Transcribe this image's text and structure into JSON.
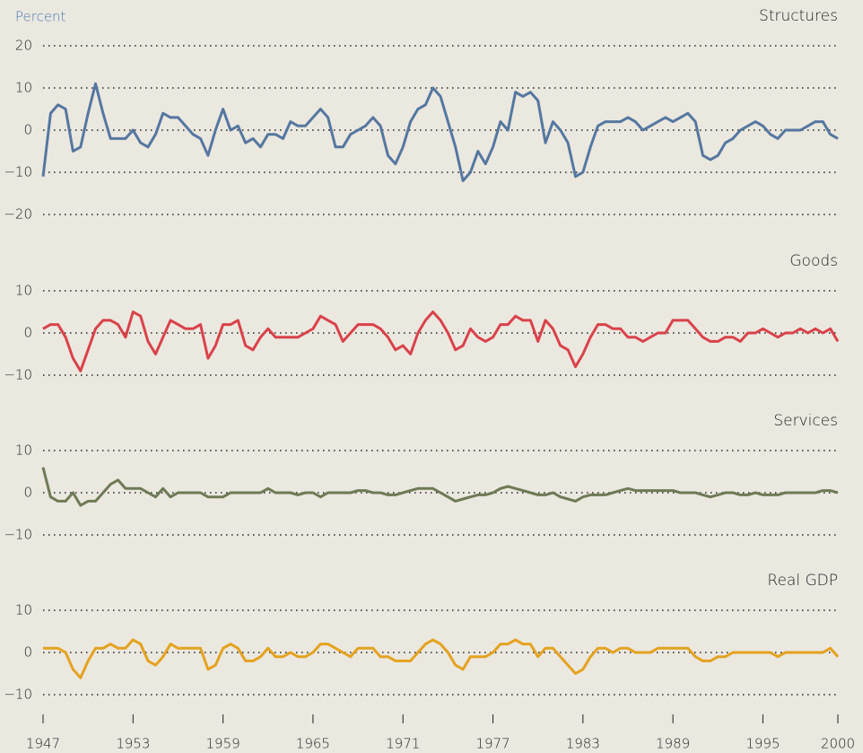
{
  "chart_data": {
    "type": "line",
    "ylabel": "Percent",
    "xlim": [
      1947,
      2000
    ],
    "xticks": [
      1947,
      1953,
      1959,
      1965,
      1971,
      1977,
      1983,
      1989,
      1995,
      2000
    ],
    "x": [
      1947,
      1947.5,
      1948,
      1948.5,
      1949,
      1949.5,
      1950,
      1950.5,
      1951,
      1951.5,
      1952,
      1952.5,
      1953,
      1953.5,
      1954,
      1954.5,
      1955,
      1955.5,
      1956,
      1956.5,
      1957,
      1957.5,
      1958,
      1958.5,
      1959,
      1959.5,
      1960,
      1960.5,
      1961,
      1961.5,
      1962,
      1962.5,
      1963,
      1963.5,
      1964,
      1964.5,
      1965,
      1965.5,
      1966,
      1966.5,
      1967,
      1967.5,
      1968,
      1968.5,
      1969,
      1969.5,
      1970,
      1970.5,
      1971,
      1971.5,
      1972,
      1972.5,
      1973,
      1973.5,
      1974,
      1974.5,
      1975,
      1975.5,
      1976,
      1976.5,
      1977,
      1977.5,
      1978,
      1978.5,
      1979,
      1979.5,
      1980,
      1980.5,
      1981,
      1981.5,
      1982,
      1982.5,
      1983,
      1983.5,
      1984,
      1984.5,
      1985,
      1985.5,
      1986,
      1986.5,
      1987,
      1987.5,
      1988,
      1988.5,
      1989,
      1989.5,
      1990,
      1990.5,
      1991,
      1991.5,
      1992,
      1992.5,
      1993,
      1993.5,
      1994,
      1994.5,
      1995,
      1995.5,
      1996,
      1996.5,
      1997,
      1997.5,
      1998,
      1998.5,
      1999,
      1999.5,
      2000
    ],
    "series": [
      {
        "name": "Structures",
        "color": "#5577a0",
        "ylim": [
          -20,
          20
        ],
        "yticks": [
          {
            "value": -20,
            "label": "−20"
          },
          {
            "value": -10,
            "label": "−10"
          },
          0,
          10,
          20
        ],
        "values": [
          -11,
          4,
          6,
          5,
          -5,
          -4,
          4,
          11,
          4,
          -2,
          -2,
          -2,
          0,
          -3,
          -4,
          -1,
          4,
          3,
          3,
          1,
          -1,
          -2,
          -6,
          0,
          5,
          0,
          1,
          -3,
          -2,
          -4,
          -1,
          -1,
          -2,
          2,
          1,
          1,
          3,
          5,
          3,
          -4,
          -4,
          -1,
          0,
          1,
          3,
          1,
          -6,
          -8,
          -4,
          2,
          5,
          6,
          10,
          8,
          2,
          -4,
          -12,
          -10,
          -5,
          -8,
          -4,
          2,
          0,
          9,
          8,
          9,
          7,
          -3,
          2,
          0,
          -3,
          -11,
          -10,
          -4,
          1,
          2,
          2,
          2,
          3,
          2,
          0,
          1,
          2,
          3,
          2,
          3,
          4,
          2,
          -6,
          -7,
          -6,
          -3,
          -2,
          0,
          1,
          2,
          1,
          -1,
          -2,
          0,
          0,
          0,
          1,
          2,
          2,
          -1,
          -2
        ]
      },
      {
        "name": "Goods",
        "color": "#d9424a",
        "ylim": [
          -10,
          10
        ],
        "yticks": [
          {
            "value": -10,
            "label": "−10"
          },
          0,
          10
        ],
        "values": [
          1,
          2,
          2,
          -1,
          -6,
          -9,
          -4,
          1,
          3,
          3,
          2,
          -1,
          5,
          4,
          -2,
          -5,
          -1,
          3,
          2,
          1,
          1,
          2,
          -6,
          -3,
          2,
          2,
          3,
          -3,
          -4,
          -1,
          1,
          -1,
          -1,
          -1,
          -1,
          0,
          1,
          4,
          3,
          2,
          -2,
          0,
          2,
          2,
          2,
          1,
          -1,
          -4,
          -3,
          -5,
          0,
          3,
          5,
          3,
          0,
          -4,
          -3,
          1,
          -1,
          -2,
          -1,
          2,
          2,
          4,
          3,
          3,
          -2,
          3,
          1,
          -3,
          -4,
          -8,
          -5,
          -1,
          2,
          2,
          1,
          1,
          -1,
          -1,
          -2,
          -1,
          0,
          0,
          3,
          3,
          3,
          1,
          -1,
          -2,
          -2,
          -1,
          -1,
          -2,
          0,
          0,
          1,
          0,
          -1,
          0,
          0,
          1,
          0,
          1,
          0,
          1,
          -2
        ]
      },
      {
        "name": "Services",
        "color": "#6e7a55",
        "ylim": [
          -10,
          10
        ],
        "yticks": [
          {
            "value": -10,
            "label": "−10"
          },
          0,
          10
        ],
        "values": [
          6,
          -1,
          -2,
          -2,
          0,
          -3,
          -2,
          -2,
          0,
          2,
          3,
          1,
          1,
          1,
          0,
          -1,
          1,
          -1,
          0,
          0,
          0,
          0,
          -1,
          -1,
          -1,
          0,
          0,
          0,
          0,
          0,
          1,
          0,
          0,
          0,
          -0.5,
          0,
          0,
          -1,
          0,
          0,
          0,
          0,
          0.5,
          0.5,
          0,
          0,
          -0.5,
          -0.5,
          0,
          0.5,
          1,
          1,
          1,
          0,
          -1,
          -2,
          -1.5,
          -1,
          -0.5,
          -0.5,
          0,
          1,
          1.5,
          1,
          0.5,
          0,
          -0.5,
          -0.5,
          0,
          -1,
          -1.5,
          -2,
          -1,
          -0.5,
          -0.5,
          -0.5,
          0,
          0.5,
          1,
          0.5,
          0.5,
          0.5,
          0.5,
          0.5,
          0.5,
          0,
          0,
          0,
          -0.5,
          -1,
          -0.5,
          0,
          0,
          -0.5,
          -0.5,
          0,
          -0.5,
          -0.5,
          -0.5,
          0,
          0,
          0,
          0,
          0,
          0.5,
          0.5,
          0
        ]
      },
      {
        "name": "Real GDP",
        "color": "#e4a21f",
        "ylim": [
          -10,
          10
        ],
        "yticks": [
          {
            "value": -10,
            "label": "−10"
          },
          0,
          10
        ],
        "values": [
          1,
          1,
          1,
          0,
          -4,
          -6,
          -2,
          1,
          1,
          2,
          1,
          1,
          3,
          2,
          -2,
          -3,
          -1,
          2,
          1,
          1,
          1,
          1,
          -4,
          -3,
          1,
          2,
          1,
          -2,
          -2,
          -1,
          1,
          -1,
          -1,
          0,
          -1,
          -1,
          0,
          2,
          2,
          1,
          0,
          -1,
          1,
          1,
          1,
          -1,
          -1,
          -2,
          -2,
          -2,
          0,
          2,
          3,
          2,
          0,
          -3,
          -4,
          -1,
          -1,
          -1,
          0,
          2,
          2,
          3,
          2,
          2,
          -1,
          1,
          1,
          -1,
          -3,
          -5,
          -4,
          -1,
          1,
          1,
          0,
          1,
          1,
          0,
          0,
          0,
          1,
          1,
          1,
          1,
          1,
          -1,
          -2,
          -2,
          -1,
          -1,
          0,
          0,
          0,
          0,
          0,
          0,
          -1,
          0,
          0,
          0,
          0,
          0,
          0,
          1,
          -1
        ]
      }
    ]
  }
}
